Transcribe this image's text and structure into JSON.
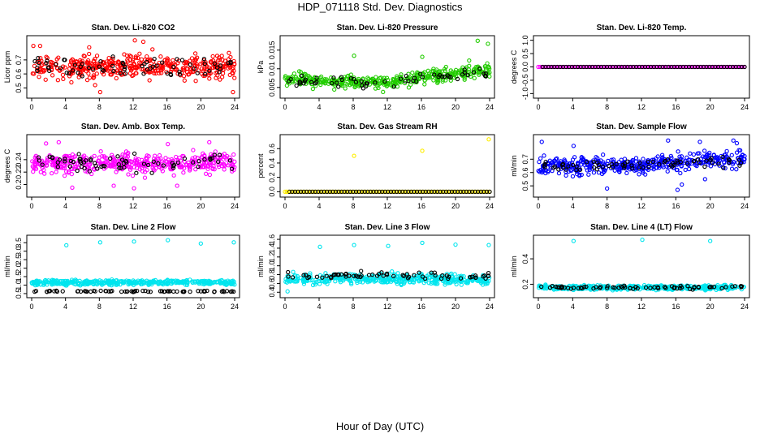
{
  "page": {
    "title": "HDP_071118  Std. Dev. Diagnostics",
    "xlabel": "Hour of Day (UTC)"
  },
  "chart_data": [
    {
      "type": "scatter",
      "title": "Stan. Dev. Li-820 CO2",
      "ylabel": "Licor ppm",
      "color": "#ff0000",
      "xlim": [
        0,
        24
      ],
      "xticks": [
        0,
        4,
        8,
        12,
        16,
        20,
        24
      ],
      "ylim": [
        0.45,
        0.85
      ],
      "yticks": [
        0.5,
        0.6,
        0.7
      ],
      "dense": {
        "center": 0.65,
        "spread": 0.06,
        "n": 420,
        "seed": 11
      },
      "black": {
        "center": 0.65,
        "spread": 0.05,
        "n": 70,
        "seed": 12
      },
      "outliers": [
        [
          0.2,
          0.8
        ],
        [
          1.0,
          0.8
        ],
        [
          6.8,
          0.79
        ],
        [
          12.2,
          0.84
        ],
        [
          13.2,
          0.83
        ],
        [
          7.5,
          0.52
        ],
        [
          8.1,
          0.47
        ],
        [
          19.4,
          0.55
        ],
        [
          23.8,
          0.47
        ]
      ]
    },
    {
      "type": "scatter",
      "title": "Stan. Dev. Li-820 Pressure",
      "ylabel": "kPa",
      "color": "#22cc00",
      "xlim": [
        0,
        24
      ],
      "xticks": [
        0,
        4,
        8,
        12,
        16,
        20,
        24
      ],
      "ylim": [
        0.003,
        0.018
      ],
      "yticks": [
        0.005,
        0.01,
        0.015
      ],
      "dense": {
        "center": 0.0072,
        "spread": 0.0012,
        "n": 420,
        "seed": 21,
        "trend": [
          [
            0,
            0.0072
          ],
          [
            12,
            0.0062
          ],
          [
            16,
            0.0078
          ],
          [
            24,
            0.0095
          ]
        ]
      },
      "black": {
        "center": 0.007,
        "spread": 0.0009,
        "n": 60,
        "seed": 22,
        "trend": [
          [
            0,
            0.007
          ],
          [
            12,
            0.0062
          ],
          [
            16,
            0.0076
          ],
          [
            24,
            0.0092
          ]
        ]
      },
      "outliers": [
        [
          8.1,
          0.0135
        ],
        [
          16.1,
          0.0132
        ],
        [
          22.6,
          0.0175
        ],
        [
          23.8,
          0.0167
        ],
        [
          21.6,
          0.0122
        ],
        [
          11.5,
          0.0038
        ]
      ]
    },
    {
      "type": "scatter",
      "title": "Stan. Dev. Li-820 Temp.",
      "ylabel": "degrees C",
      "color": "#ff00ff",
      "xlim": [
        0,
        24
      ],
      "xticks": [
        0,
        4,
        8,
        12,
        16,
        20,
        24
      ],
      "ylim": [
        -1.05,
        1.05
      ],
      "yticks": [
        -1.0,
        -0.5,
        0.0,
        0.5,
        1.0
      ],
      "constant": 0.0,
      "n": 110,
      "black_n": 70
    },
    {
      "type": "scatter",
      "title": "Stan. Dev. Amb. Box Temp.",
      "ylabel": "degrees C",
      "color": "#ff00ff",
      "xlim": [
        0,
        24
      ],
      "xticks": [
        0,
        4,
        8,
        12,
        16,
        20,
        24
      ],
      "ylim": [
        0.185,
        0.275
      ],
      "yticks": [
        0.2,
        0.22,
        0.24
      ],
      "dense": {
        "center": 0.234,
        "spread": 0.011,
        "n": 420,
        "seed": 41
      },
      "black": {
        "center": 0.234,
        "spread": 0.009,
        "n": 70,
        "seed": 42
      },
      "outliers": [
        [
          1.7,
          0.266
        ],
        [
          3.2,
          0.268
        ],
        [
          16.1,
          0.265
        ],
        [
          21.0,
          0.268
        ],
        [
          4.8,
          0.195
        ],
        [
          9.7,
          0.198
        ],
        [
          12.1,
          0.194
        ],
        [
          17.2,
          0.198
        ]
      ]
    },
    {
      "type": "scatter",
      "title": "Stan. Dev. Gas Stream RH",
      "ylabel": "percent",
      "color": "#ffee00",
      "xlim": [
        0,
        24
      ],
      "xticks": [
        0,
        4,
        8,
        12,
        16,
        20,
        24
      ],
      "ylim": [
        -0.03,
        0.75
      ],
      "yticks": [
        0.0,
        0.2,
        0.4,
        0.6
      ],
      "constant": 0.0,
      "n": 110,
      "black_n": 70,
      "outliers": [
        [
          8.1,
          0.5
        ],
        [
          16.1,
          0.57
        ],
        [
          23.9,
          0.73
        ],
        [
          0.2,
          0.0
        ]
      ]
    },
    {
      "type": "scatter",
      "title": "Stan. Dev. Sample Flow",
      "ylabel": "ml/min",
      "color": "#0000ff",
      "xlim": [
        0,
        24
      ],
      "xticks": [
        0,
        4,
        8,
        12,
        16,
        20,
        24
      ],
      "ylim": [
        0.44,
        0.86
      ],
      "yticks": [
        0.5,
        0.6,
        0.7
      ],
      "dense": {
        "center": 0.655,
        "spread": 0.045,
        "n": 420,
        "seed": 61,
        "trend": [
          [
            0,
            0.65
          ],
          [
            12,
            0.65
          ],
          [
            16,
            0.68
          ],
          [
            24,
            0.7
          ]
        ]
      },
      "black": {
        "center": 0.655,
        "spread": 0.03,
        "n": 70,
        "seed": 62,
        "trend": [
          [
            0,
            0.65
          ],
          [
            12,
            0.65
          ],
          [
            16,
            0.68
          ],
          [
            24,
            0.7
          ]
        ]
      },
      "outliers": [
        [
          0.4,
          0.83
        ],
        [
          4.1,
          0.8
        ],
        [
          8.0,
          0.48
        ],
        [
          15.1,
          0.84
        ],
        [
          16.2,
          0.47
        ],
        [
          18.8,
          0.83
        ],
        [
          22.7,
          0.84
        ],
        [
          23.1,
          0.82
        ],
        [
          16.7,
          0.51
        ],
        [
          19.4,
          0.55
        ]
      ]
    },
    {
      "type": "scatter",
      "title": "Stan. Dev. Line 2 Flow",
      "ylabel": "ml/min",
      "color": "#00e5ee",
      "xlim": [
        0,
        24
      ],
      "xticks": [
        0,
        4,
        8,
        12,
        16,
        20,
        24
      ],
      "ylim": [
        0.45,
        3.75
      ],
      "yticks": [
        0.5,
        1.0,
        1.5,
        2.0,
        2.5,
        3.0,
        3.5
      ],
      "dense": {
        "center": 1.15,
        "spread": 0.1,
        "n": 420,
        "seed": 71
      },
      "black": {
        "center": 0.63,
        "spread": 0.03,
        "n": 70,
        "seed": 72
      },
      "outliers": [
        [
          4.1,
          3.35
        ],
        [
          8.1,
          3.52
        ],
        [
          12.1,
          3.57
        ],
        [
          16.1,
          3.65
        ],
        [
          20.0,
          3.45
        ],
        [
          23.9,
          3.52
        ]
      ]
    },
    {
      "type": "scatter",
      "title": "Stan. Dev. Line 3 Flow",
      "ylabel": "ml/min",
      "color": "#00e5ee",
      "xlim": [
        0,
        24
      ],
      "xticks": [
        0,
        4,
        8,
        12,
        16,
        20,
        24
      ],
      "ylim": [
        0.35,
        1.62
      ],
      "yticks": [
        0.4,
        0.6,
        0.8,
        1.0,
        1.2,
        1.4,
        1.6
      ],
      "dense": {
        "center": 0.7,
        "spread": 0.09,
        "n": 420,
        "seed": 81
      },
      "black": {
        "center": 0.78,
        "spread": 0.05,
        "n": 70,
        "seed": 82
      },
      "outliers": [
        [
          4.1,
          1.43
        ],
        [
          8.1,
          1.47
        ],
        [
          12.1,
          1.45
        ],
        [
          16.1,
          1.52
        ],
        [
          20.0,
          1.48
        ],
        [
          23.9,
          1.47
        ],
        [
          0.3,
          0.42
        ]
      ]
    },
    {
      "type": "scatter",
      "title": "Stan. Dev. Line 4 (LT) Flow",
      "ylabel": "ml/min",
      "color": "#00e5ee",
      "xlim": [
        0,
        24
      ],
      "xticks": [
        0,
        4,
        8,
        12,
        16,
        20,
        24
      ],
      "ylim": [
        0.12,
        0.56
      ],
      "yticks": [
        0.2,
        0.4
      ],
      "dense": {
        "center": 0.175,
        "spread": 0.012,
        "n": 420,
        "seed": 91
      },
      "black": {
        "center": 0.175,
        "spread": 0.01,
        "n": 70,
        "seed": 92
      },
      "outliers": [
        [
          4.1,
          0.54
        ],
        [
          12.1,
          0.55
        ],
        [
          20.0,
          0.54
        ]
      ]
    }
  ]
}
